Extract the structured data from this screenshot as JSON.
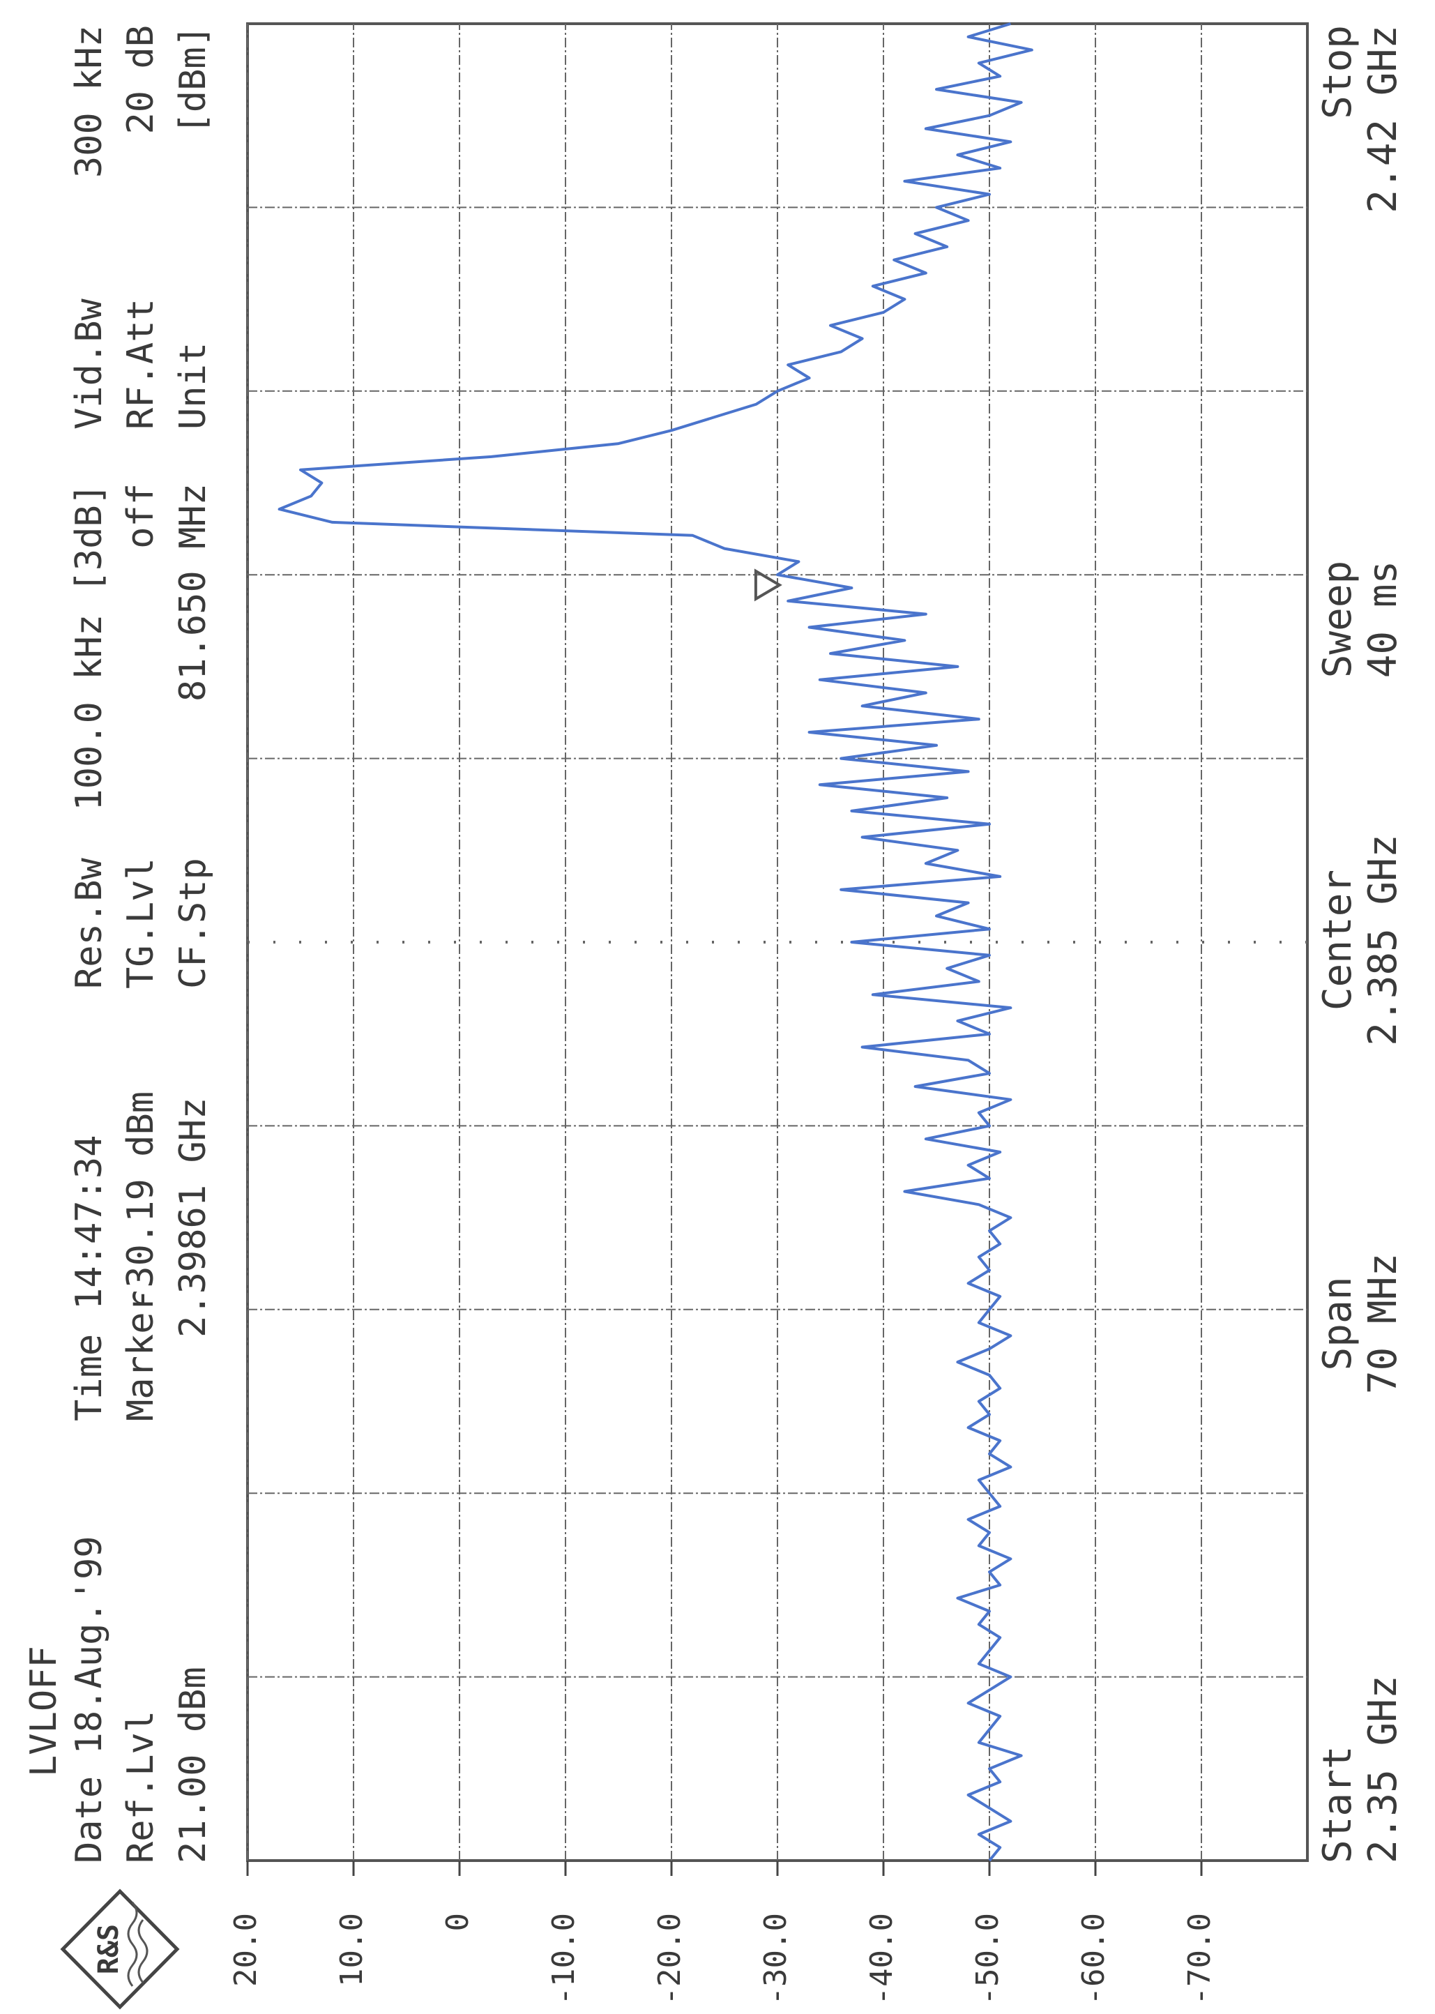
{
  "chart_data": {
    "type": "line",
    "header": {
      "lvloff": "LVLOFF",
      "date": "Date 18.Aug.'99",
      "ref_lvl_label": "Ref.Lvl",
      "ref_lvl": "21.00 dBm",
      "time_label": "Time",
      "time": "14:47:34",
      "marker_label": "Marker",
      "res_bw_label": "Res.Bw",
      "res_bw": "100.0 kHz [3dB]",
      "tg_lvl_label": "TG.Lvl",
      "tg_lvl": "off",
      "cf_stp_label": "CF.Stp",
      "cf_stp": "81.650 MHz",
      "vid_bw_label": "Vid.Bw",
      "vid_bw": "300 kHz",
      "rf_att_label": "RF.Att",
      "rf_att": "20 dB",
      "unit_label": "Unit",
      "unit": "[dBm]"
    },
    "footer": {
      "start_label": "Start",
      "start": "2.35 GHz",
      "span_label": "Span",
      "span": "70 MHz",
      "center_label": "Center",
      "center": "2.385 GHz",
      "sweep_label": "Sweep",
      "sweep": "40 ms",
      "stop_label": "Stop",
      "stop": "2.42 GHz"
    },
    "logo": "R&S",
    "marker": {
      "x": 2.39861,
      "value": -30.19,
      "label": "-30.19 dBm",
      "x_label": "2.39861 GHz"
    },
    "color": "#4a74cc",
    "xlim": [
      2.35,
      2.42
    ],
    "ylim": [
      -80,
      20
    ],
    "yticks": [
      {
        "value": 20,
        "label": "20.0"
      },
      {
        "value": 10,
        "label": "10.0"
      },
      0,
      {
        "value": -10,
        "label": "-10.0"
      },
      {
        "value": -20,
        "label": "-20.0"
      },
      {
        "value": -30,
        "label": "-30.0"
      },
      {
        "value": -40,
        "label": "-40.0"
      },
      {
        "value": -50,
        "label": "-50.0"
      },
      {
        "value": -60,
        "label": "-60.0"
      },
      {
        "value": -70,
        "label": "-70.0"
      }
    ],
    "grid": true,
    "x": [
      2.35,
      2.3505,
      2.351,
      2.3515,
      2.352,
      2.3525,
      2.353,
      2.3535,
      2.354,
      2.3545,
      2.355,
      2.3555,
      2.356,
      2.3565,
      2.357,
      2.3575,
      2.358,
      2.3585,
      2.359,
      2.3595,
      2.36,
      2.3605,
      2.361,
      2.3615,
      2.362,
      2.3625,
      2.363,
      2.3635,
      2.364,
      2.3645,
      2.365,
      2.3655,
      2.366,
      2.3665,
      2.367,
      2.3675,
      2.368,
      2.3685,
      2.369,
      2.3695,
      2.37,
      2.3705,
      2.371,
      2.3715,
      2.372,
      2.3725,
      2.373,
      2.3735,
      2.374,
      2.3745,
      2.375,
      2.3755,
      2.376,
      2.3765,
      2.377,
      2.3775,
      2.378,
      2.3785,
      2.379,
      2.3795,
      2.38,
      2.3805,
      2.381,
      2.3815,
      2.382,
      2.3825,
      2.383,
      2.3835,
      2.384,
      2.3845,
      2.385,
      2.3855,
      2.386,
      2.3865,
      2.387,
      2.3875,
      2.388,
      2.3885,
      2.389,
      2.3895,
      2.39,
      2.3905,
      2.391,
      2.3915,
      2.392,
      2.3925,
      2.393,
      2.3935,
      2.394,
      2.3945,
      2.395,
      2.3955,
      2.396,
      2.3965,
      2.397,
      2.3975,
      2.398,
      2.3985,
      2.399,
      2.3995,
      2.4,
      2.4005,
      2.401,
      2.4015,
      2.402,
      2.4025,
      2.403,
      2.4035,
      2.404,
      2.4045,
      2.405,
      2.4055,
      2.406,
      2.4065,
      2.407,
      2.4075,
      2.408,
      2.4085,
      2.409,
      2.4095,
      2.41,
      2.4105,
      2.411,
      2.4115,
      2.412,
      2.4125,
      2.413,
      2.4135,
      2.414,
      2.4145,
      2.415,
      2.4155,
      2.416,
      2.4165,
      2.417,
      2.4175,
      2.418,
      2.4185,
      2.419,
      2.4195,
      2.42
    ],
    "values": [
      -50,
      -51,
      -49,
      -52,
      -50,
      -48,
      -51,
      -50,
      -53,
      -49,
      -50,
      -51,
      -48,
      -50,
      -52,
      -49,
      -50,
      -51,
      -49,
      -50,
      -47,
      -51,
      -50,
      -52,
      -49,
      -50,
      -48,
      -51,
      -50,
      -49,
      -52,
      -50,
      -51,
      -48,
      -50,
      -49,
      -51,
      -50,
      -47,
      -50,
      -52,
      -49,
      -50,
      -51,
      -48,
      -50,
      -49,
      -51,
      -50,
      -52,
      -49,
      -42,
      -50,
      -48,
      -51,
      -44,
      -50,
      -49,
      -52,
      -43,
      -50,
      -48,
      -38,
      -50,
      -47,
      -52,
      -39,
      -49,
      -46,
      -50,
      -37,
      -50,
      -45,
      -48,
      -36,
      -51,
      -44,
      -47,
      -38,
      -50,
      -37,
      -46,
      -34,
      -48,
      -36,
      -45,
      -33,
      -49,
      -38,
      -44,
      -34,
      -47,
      -35,
      -42,
      -33,
      -44,
      -31,
      -37,
      -30,
      -32,
      -25,
      -22,
      12,
      17,
      14,
      13,
      15,
      -3,
      -15,
      -20,
      -24,
      -28,
      -30,
      -33,
      -31,
      -36,
      -38,
      -35,
      -40,
      -42,
      -39,
      -44,
      -41,
      -46,
      -43,
      -48,
      -45,
      -50,
      -42,
      -51,
      -47,
      -52,
      -44,
      -50,
      -53,
      -45,
      -51,
      -49,
      -54,
      -48,
      -52
    ]
  }
}
